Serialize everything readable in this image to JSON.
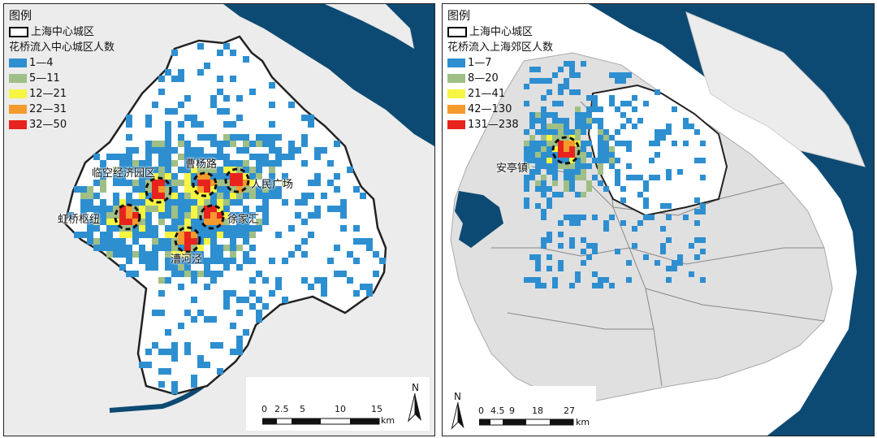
{
  "left_map": {
    "legend": {
      "title": "图例",
      "boundary_label": "上海中心城区",
      "flow_title": "花桥流入中心城区人数",
      "classes": [
        {
          "label": "1—4",
          "color": "#2e8fd0"
        },
        {
          "label": "5—11",
          "color": "#9fbf86"
        },
        {
          "label": "12—21",
          "color": "#f5f542"
        },
        {
          "label": "22—31",
          "color": "#f59a2c"
        },
        {
          "label": "32—50",
          "color": "#e8231e"
        }
      ]
    },
    "places": {
      "linkong": "临空经济园区",
      "caoyang": "曹杨路",
      "renmin": "人民广场",
      "hongqiao": "虹桥枢纽",
      "xujiahui": "徐家汇",
      "caohejing": "漕河泾"
    },
    "scale": {
      "ticks": [
        "0",
        "2.5",
        "5",
        "10",
        "15"
      ],
      "unit": "km"
    },
    "north": "N"
  },
  "right_map": {
    "legend": {
      "title": "图例",
      "boundary_label": "上海中心城区",
      "flow_title": "花桥流入上海郊区人数",
      "classes": [
        {
          "label": "1—7",
          "color": "#2e8fd0"
        },
        {
          "label": "8—20",
          "color": "#9fbf86"
        },
        {
          "label": "21—41",
          "color": "#f5f542"
        },
        {
          "label": "42—130",
          "color": "#f59a2c"
        },
        {
          "label": "131—238",
          "color": "#e8231e"
        }
      ]
    },
    "places": {
      "anting": "安亭镇"
    },
    "scale": {
      "ticks": [
        "0",
        "4.5",
        "9",
        "18",
        "27"
      ],
      "unit": "km"
    },
    "north": "N"
  },
  "colors": {
    "water": "#0d4a73",
    "land": "#e6e6e6",
    "urban": "#ffffff"
  }
}
